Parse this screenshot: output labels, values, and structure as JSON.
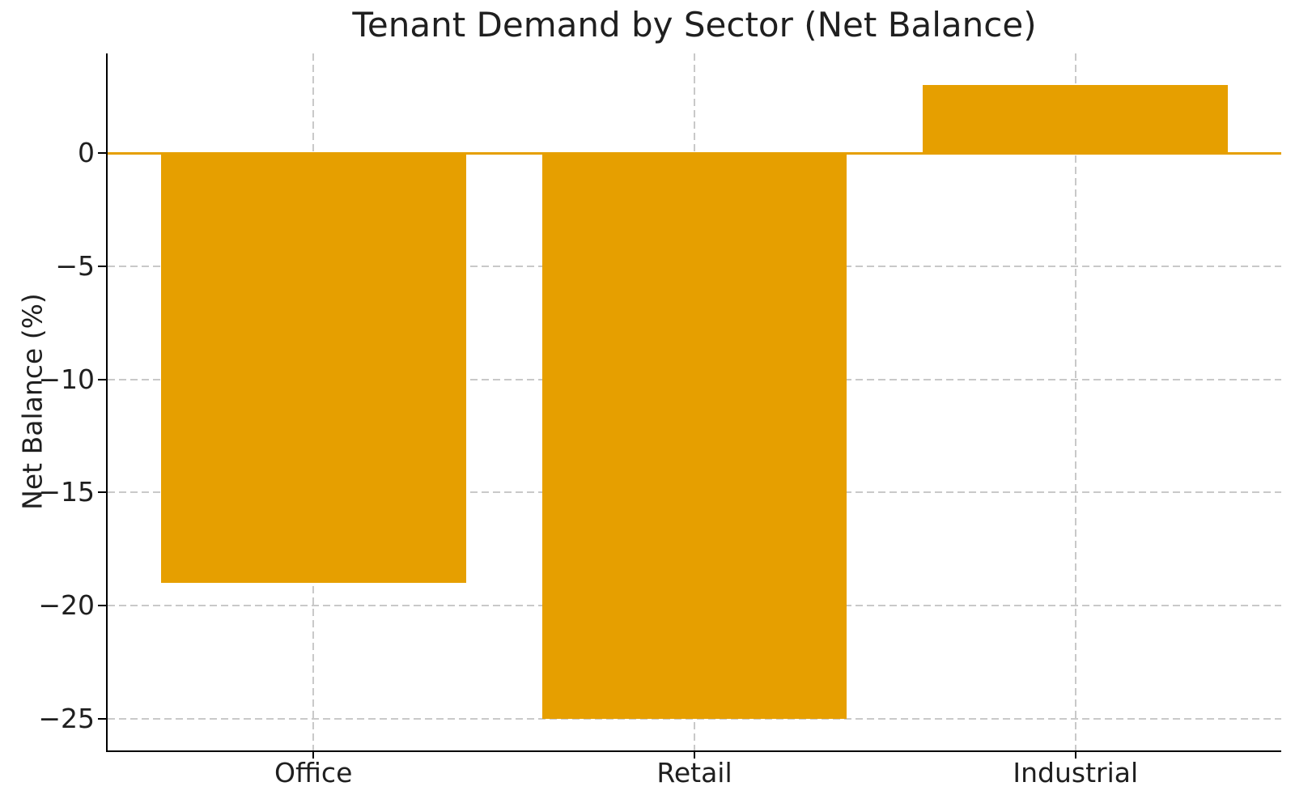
{
  "chart_data": {
    "type": "bar",
    "title": "Tenant Demand by Sector (Net Balance)",
    "xlabel": "",
    "ylabel": "Net Balance (%)",
    "categories": [
      "Office",
      "Retail",
      "Industrial"
    ],
    "values": [
      -19,
      -25,
      3
    ],
    "x_positions": [
      0,
      1,
      2
    ],
    "bar_width": 0.8,
    "xlim": [
      -0.54,
      2.54
    ],
    "ylim": [
      -26.4,
      4.4
    ],
    "yticks": [
      0,
      -5,
      -10,
      -15,
      -20,
      -25
    ],
    "ytick_labels": [
      "0",
      "−5",
      "−10",
      "−15",
      "−20",
      "−25"
    ],
    "grid": true,
    "legend": false,
    "zero_line": 0,
    "colors": {
      "bar": "#E69F00",
      "zero_line": "#E69F00",
      "grid": "#c9c9c9",
      "axis": "#000000",
      "text": "#1f1f1f",
      "background": "#ffffff"
    }
  }
}
